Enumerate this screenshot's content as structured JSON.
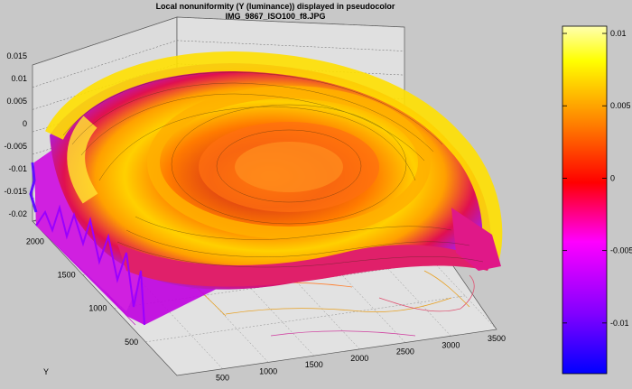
{
  "chart_data": {
    "type": "surface3d",
    "title": "Local nonuniformity  (Y (luminance))  displayed in pseudocolor",
    "subtitle": "IMG_9867_ISO100_f8.JPG",
    "xlabel": "",
    "ylabel": "Y",
    "zlabel": "",
    "x_ticks": [
      500,
      1000,
      1500,
      2000,
      2500,
      3000,
      3500
    ],
    "y_ticks": [
      500,
      1000,
      1500,
      2000
    ],
    "z_ticks": [
      0.015,
      0.01,
      0.005,
      0,
      -0.005,
      -0.01,
      -0.015,
      -0.02
    ],
    "z_tick_labels": [
      "0.015",
      "0.01",
      "0.005",
      "0",
      "-0.005",
      "-0.01",
      "-0.015",
      "-0.02"
    ],
    "xlim": [
      0,
      3500
    ],
    "ylim": [
      0,
      2300
    ],
    "zlim": [
      -0.02,
      0.015
    ],
    "grid": true,
    "colorbar": {
      "ticks": [
        0.01,
        0.005,
        0,
        -0.005,
        -0.01
      ],
      "tick_labels": [
        "0.01",
        "0.005",
        "0",
        "-0.005",
        "-0.01"
      ],
      "range": [
        -0.0135,
        0.0105
      ],
      "colormap": [
        "#0000ff",
        "#8000ff",
        "#ff00ff",
        "#ff0000",
        "#ff8000",
        "#ffff00",
        "#ffffa0"
      ]
    },
    "surface_description_values": {
      "outer_ring_level": 0.0075,
      "inner_ring_level": 0.003,
      "center_level": 0.004,
      "background_level": -0.01
    }
  }
}
